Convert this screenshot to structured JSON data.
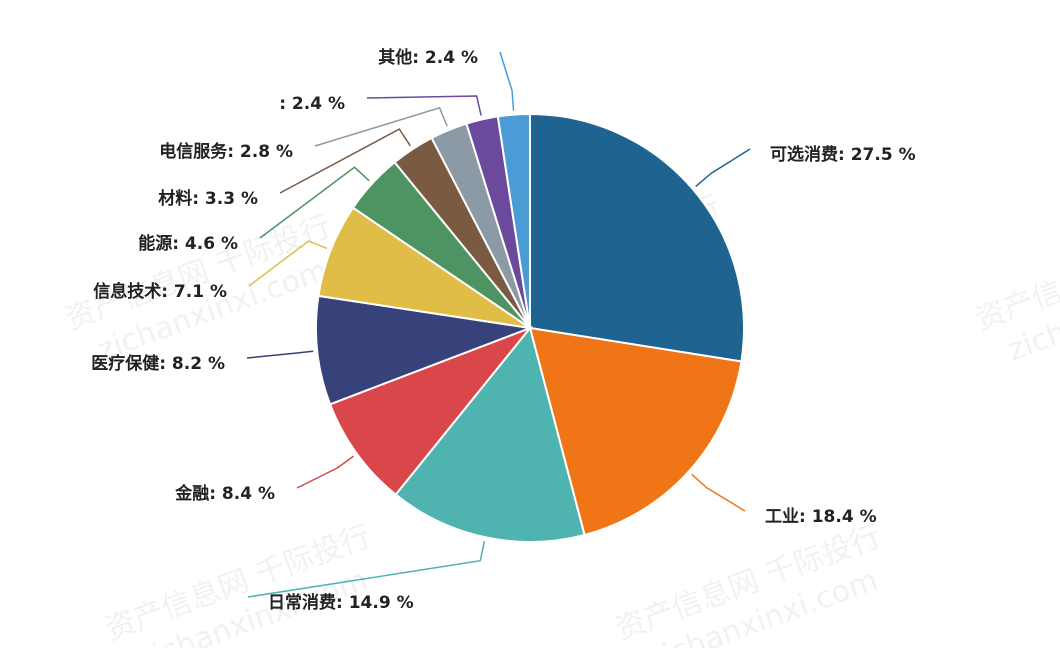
{
  "chart_data": {
    "type": "pie",
    "value_labels": [
      "可选消费: 27.5 %",
      "工业: 18.4 %",
      "日常消费: 14.9 %",
      "金融: 8.4 %",
      "医疗保健: 8.2 %",
      "信息技术: 7.1 %",
      "能源: 4.6 %",
      "材料: 3.3 %",
      "电信服务: 2.8 %",
      ": 2.4 %",
      "其他: 2.4 %"
    ],
    "values": [
      27.5,
      18.4,
      14.9,
      8.4,
      8.2,
      7.1,
      4.6,
      3.3,
      2.8,
      2.4,
      2.4
    ],
    "colors": [
      "#1f6391",
      "#f07516",
      "#4fb3b0",
      "#d9474a",
      "#38427a",
      "#dfbd47",
      "#4e9463",
      "#7b5a42",
      "#8c9aa5",
      "#6b4a9e",
      "#4b9bd5"
    ]
  },
  "watermarks": [
    "资产信息网 千际投行",
    "zichanxinxi.com"
  ]
}
